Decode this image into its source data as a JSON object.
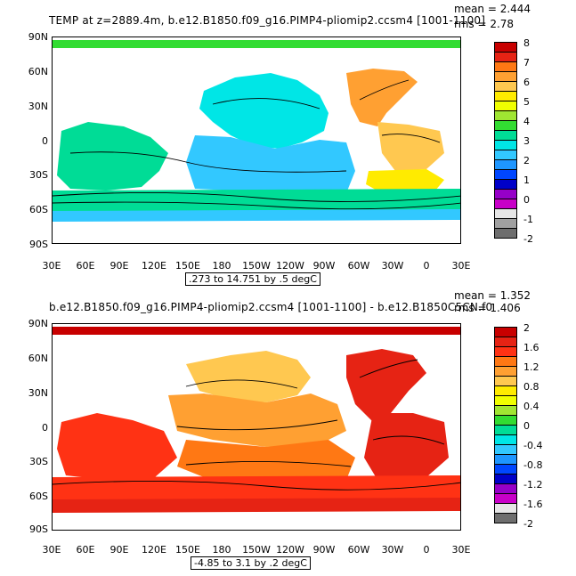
{
  "top_panel": {
    "title": "TEMP at z=2889.4m, b.e12.B1850.f09_g16.PIMP4-pliomip2.ccsm4 [1001-1100]",
    "mean_label": "mean = 2.444",
    "rms_label": "rms = 2.78",
    "range_text": ".273 to 14.751 by .5 degC",
    "lat_labels": [
      "90N",
      "60N",
      "30N",
      "0",
      "30S",
      "60S",
      "90S"
    ],
    "lon_labels": [
      "30E",
      "60E",
      "90E",
      "120E",
      "150E",
      "180",
      "150W",
      "120W",
      "90W",
      "60W",
      "30W",
      "0",
      "30E"
    ],
    "colorbar": {
      "labels": [
        "8",
        "7",
        "6",
        "5",
        "4",
        "3",
        "2",
        "1",
        "0",
        "-1",
        "-2"
      ],
      "colors": [
        "#c80000",
        "#e62314",
        "#ff7814",
        "#ffa032",
        "#ffc850",
        "#ffeb00",
        "#f0ff00",
        "#a0e632",
        "#32dc32",
        "#00dc96",
        "#00e6e6",
        "#32c8ff",
        "#1e96ff",
        "#0046ff",
        "#0000c8",
        "#9600c8",
        "#c800c8",
        "#e6e6e6",
        "#a0a0a0",
        "#6e6e6e"
      ]
    }
  },
  "bottom_panel": {
    "title": "b.e12.B1850.f09_g16.PIMP4-pliomip2.ccsm4 [1001-1100] - b.e12.B1850C5CN.f0",
    "mean_label": "mean = 1.352",
    "rms_label": "rms = 1.406",
    "range_text": "-4.85 to 3.1 by .2 degC",
    "lat_labels": [
      "90N",
      "60N",
      "30N",
      "0",
      "30S",
      "60S",
      "90S"
    ],
    "lon_labels": [
      "30E",
      "60E",
      "90E",
      "120E",
      "150E",
      "180",
      "150W",
      "120W",
      "90W",
      "60W",
      "30W",
      "0",
      "30E"
    ],
    "colorbar": {
      "labels": [
        "2",
        "1.6",
        "1.2",
        "0.8",
        "0.4",
        "0",
        "-0.4",
        "-0.8",
        "-1.2",
        "-1.6",
        "-2"
      ],
      "colors": [
        "#c80000",
        "#e62314",
        "#ff3214",
        "#ff7814",
        "#ffa032",
        "#ffc850",
        "#ffeb00",
        "#f0ff00",
        "#a0e632",
        "#32dc32",
        "#00dc96",
        "#00e6e6",
        "#32c8ff",
        "#1e96ff",
        "#0046ff",
        "#0000c8",
        "#9600c8",
        "#c800c8",
        "#e6e6e6",
        "#6e6e6e"
      ]
    }
  },
  "palette": {
    "top_pacific": "#32c8ff",
    "top_pacific_north": "#00e6e6",
    "top_indian": "#00dc96",
    "top_atlantic": "#ffc850",
    "top_atlantic_north": "#ffa032",
    "top_atlantic_south": "#ffeb00",
    "top_southern": "#00dc96",
    "bot_pacific_north": "#ffc850",
    "bot_pacific_mid": "#ffa032",
    "bot_pacific_south": "#ff7814",
    "bot_indian": "#ff3214",
    "bot_atlantic": "#e62314",
    "bot_southern": "#ff3214"
  }
}
